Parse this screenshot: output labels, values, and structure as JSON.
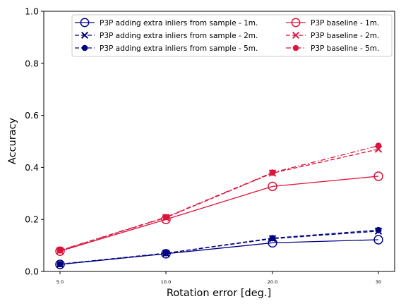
{
  "chart_data": {
    "type": "line",
    "title": "",
    "xlabel": "Rotation error [deg.]",
    "ylabel": "Accuracy",
    "categories": [
      "5.0",
      "10.0",
      "20.0",
      "30"
    ],
    "ylim": [
      0,
      1.0
    ],
    "yticks": [
      "0.0",
      "0.2",
      "0.4",
      "0.6",
      "0.8",
      "1.0"
    ],
    "grid": false,
    "legend_placement": "top-right",
    "series": [
      {
        "name": "P3P adding extra inliers from sample - 1m.",
        "color": "#000080",
        "marker": "circle-open",
        "linestyle": "solid",
        "values": [
          0.027,
          0.068,
          0.11,
          0.122
        ]
      },
      {
        "name": "P3P adding extra inliers from sample - 2m.",
        "color": "#000080",
        "marker": "x",
        "linestyle": "dashed",
        "values": [
          0.028,
          0.07,
          0.126,
          0.155
        ]
      },
      {
        "name": "P3P adding extra inliers from sample - 5m.",
        "color": "#000080",
        "marker": "dot",
        "linestyle": "dashed",
        "values": [
          0.028,
          0.07,
          0.128,
          0.159
        ]
      },
      {
        "name": "P3P baseline - 1m.",
        "color": "#DC143C",
        "marker": "circle-open",
        "linestyle": "solid",
        "values": [
          0.078,
          0.2,
          0.327,
          0.366
        ]
      },
      {
        "name": "P3P baseline - 2m.",
        "color": "#DC143C",
        "marker": "x",
        "linestyle": "dashed",
        "values": [
          0.08,
          0.207,
          0.378,
          0.47
        ]
      },
      {
        "name": "P3P baseline - 5m.",
        "color": "#DC143C",
        "marker": "dot",
        "linestyle": "dashdot",
        "values": [
          0.081,
          0.209,
          0.38,
          0.483
        ]
      }
    ]
  }
}
